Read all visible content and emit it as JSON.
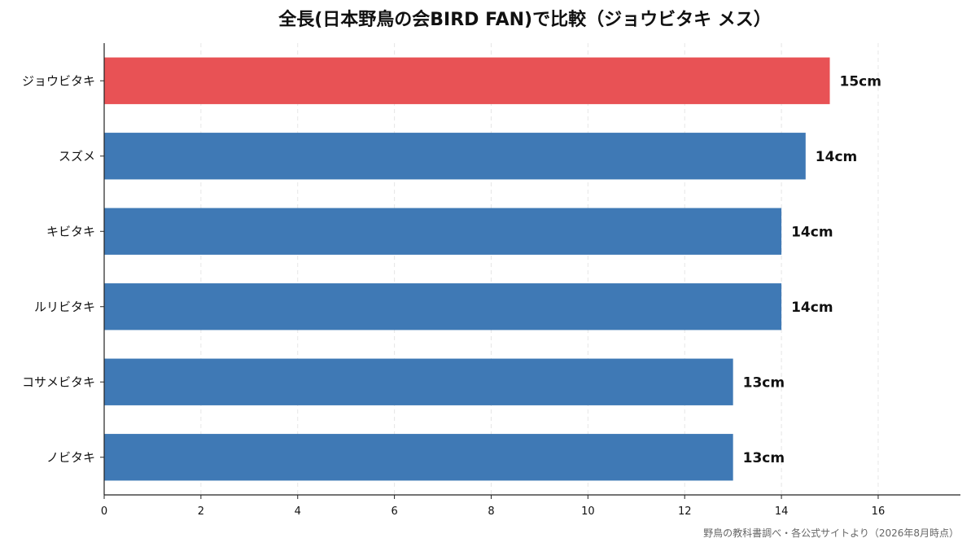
{
  "chart_data": {
    "type": "bar",
    "orientation": "horizontal",
    "title": "全長(日本野鳥の会BIRD FAN)で比較（ジョウビタキ メス）",
    "categories": [
      "ジョウビタキ",
      "スズメ",
      "キビタキ",
      "ルリビタキ",
      "コサメビタキ",
      "ノビタキ"
    ],
    "values": [
      15,
      14.5,
      14,
      14,
      13,
      13
    ],
    "value_labels": [
      "15cm",
      "14cm",
      "14cm",
      "14cm",
      "13cm",
      "13cm"
    ],
    "highlight_index": 0,
    "xlim": [
      0,
      17.7
    ],
    "xticks": [
      0,
      2,
      4,
      6,
      8,
      10,
      12,
      14,
      16
    ],
    "xlabel": "",
    "ylabel": "",
    "grid": "x-dashed",
    "colors": {
      "highlight": "#e85255",
      "default": "#3f79b5"
    }
  },
  "source": "野鳥の教科書調べ・各公式サイトより（2026年8月時点）"
}
